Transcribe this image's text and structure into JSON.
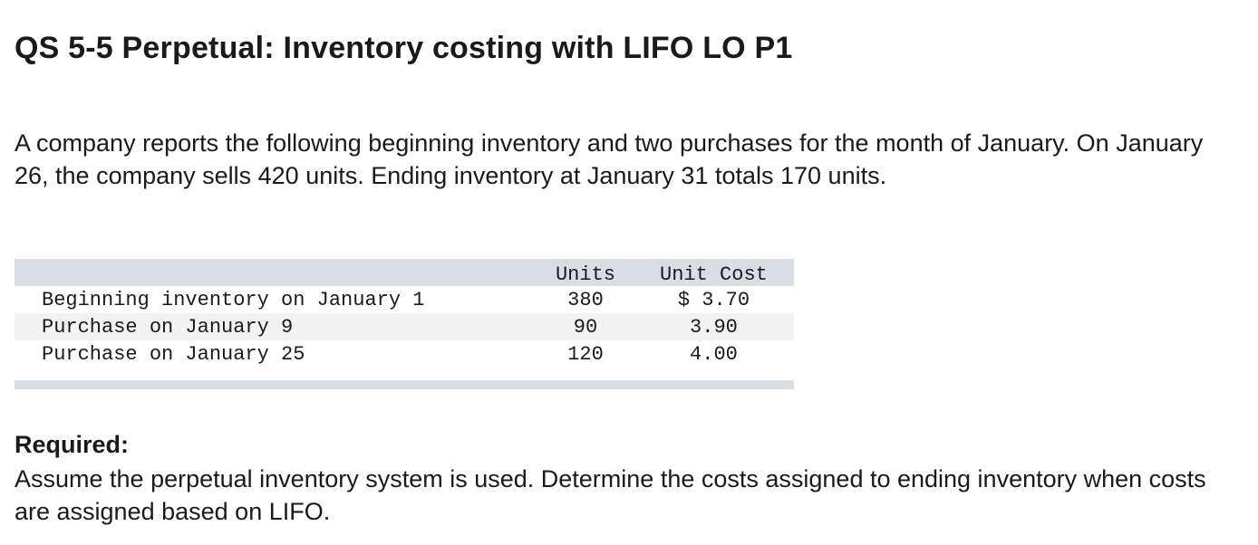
{
  "title": "QS 5-5 Perpetual: Inventory costing with LIFO LO P1",
  "intro": "A company reports the following beginning inventory and two purchases for the month of January. On January 26, the company sells 420 units. Ending inventory at January 31 totals 170 units.",
  "table": {
    "headers": {
      "description": "",
      "units": "Units",
      "unit_cost": "Unit Cost"
    },
    "rows": [
      {
        "description": "Beginning inventory on January 1",
        "units": "380",
        "unit_cost": "$ 3.70"
      },
      {
        "description": "Purchase on January 9",
        "units": "90",
        "unit_cost": "3.90"
      },
      {
        "description": "Purchase on January 25",
        "units": "120",
        "unit_cost": "4.00"
      }
    ]
  },
  "required": {
    "label": "Required:",
    "text": "Assume the perpetual inventory system is used. Determine the costs assigned to ending inventory when costs are assigned based on LIFO."
  }
}
